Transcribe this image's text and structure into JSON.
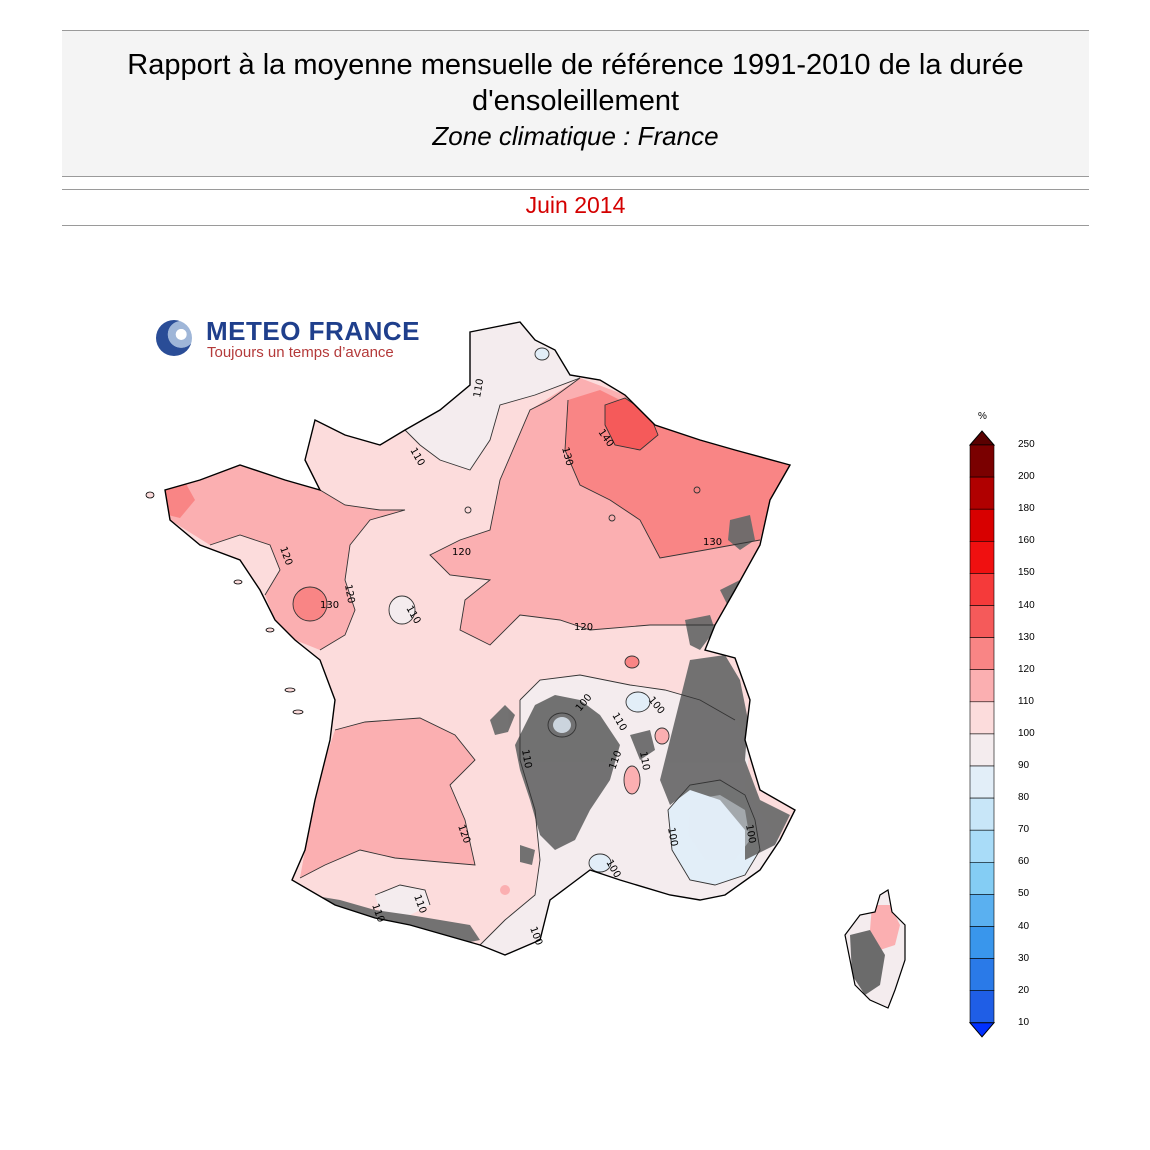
{
  "header": {
    "title": "Rapport à la moyenne mensuelle de référence 1991-2010 de la durée d'ensoleillement",
    "subtitle": "Zone climatique : France",
    "period": "Juin 2014"
  },
  "logo": {
    "name": "METEO FRANCE",
    "tagline": "Toujours un temps d’avance"
  },
  "map": {
    "contours": [
      {
        "label": "110",
        "value": 110
      },
      {
        "label": "110",
        "value": 110
      },
      {
        "label": "140",
        "value": 140
      },
      {
        "label": "130",
        "value": 130
      },
      {
        "label": "130",
        "value": 130
      },
      {
        "label": "120",
        "value": 120
      },
      {
        "label": "120",
        "value": 120
      },
      {
        "label": "130",
        "value": 130
      },
      {
        "label": "120",
        "value": 120
      },
      {
        "label": "110",
        "value": 110
      },
      {
        "label": "120",
        "value": 120
      },
      {
        "label": "100",
        "value": 100
      },
      {
        "label": "110",
        "value": 110
      },
      {
        "label": "100",
        "value": 100
      },
      {
        "label": "110",
        "value": 110
      },
      {
        "label": "110",
        "value": 110
      },
      {
        "label": "110",
        "value": 110
      },
      {
        "label": "120",
        "value": 120
      },
      {
        "label": "100",
        "value": 100
      },
      {
        "label": "100",
        "value": 100
      },
      {
        "label": "110",
        "value": 110
      },
      {
        "label": "110",
        "value": 110
      },
      {
        "label": "100",
        "value": 100
      },
      {
        "label": "100",
        "value": 100
      }
    ]
  },
  "legend": {
    "unit": "%",
    "levels": [
      {
        "label": "250",
        "color": "#7a0000"
      },
      {
        "label": "200",
        "color": "#b00000"
      },
      {
        "label": "180",
        "color": "#d80000"
      },
      {
        "label": "160",
        "color": "#f01010"
      },
      {
        "label": "150",
        "color": "#f53a3a"
      },
      {
        "label": "140",
        "color": "#f55a5a"
      },
      {
        "label": "130",
        "color": "#f98585"
      },
      {
        "label": "120",
        "color": "#fbafb1"
      },
      {
        "label": "110",
        "color": "#fcdcdc"
      },
      {
        "label": "100",
        "color": "#f4ecee"
      },
      {
        "label": "90",
        "color": "#e2eef8"
      },
      {
        "label": "80",
        "color": "#c8e6f8"
      },
      {
        "label": "70",
        "color": "#a9dcf8"
      },
      {
        "label": "60",
        "color": "#84cdf4"
      },
      {
        "label": "50",
        "color": "#5ab0f0"
      },
      {
        "label": "40",
        "color": "#3996ec"
      },
      {
        "label": "30",
        "color": "#2a7ae8"
      },
      {
        "label": "20",
        "color": "#1f5ee6"
      },
      {
        "label": "10",
        "color": "#1040e0"
      }
    ],
    "top_arrow_color": "#5a0000",
    "bottom_arrow_color": "#0030ff"
  }
}
